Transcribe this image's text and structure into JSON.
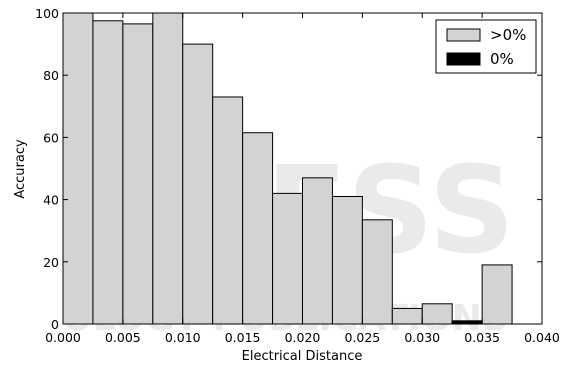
{
  "chart_data": {
    "type": "bar",
    "subtype": "histogram",
    "xlabel": "Electrical Distance",
    "ylabel": "Accuracy",
    "xlim": [
      0.0,
      0.04
    ],
    "ylim": [
      0,
      100
    ],
    "bin_width": 0.0025,
    "xticks": [
      "0.000",
      "0.005",
      "0.010",
      "0.015",
      "0.020",
      "0.025",
      "0.030",
      "0.035",
      "0.040"
    ],
    "yticks": [
      "0",
      "20",
      "40",
      "60",
      "80",
      "100"
    ],
    "grid": false,
    "legend_position": "top-right",
    "series": [
      {
        "name": ">0%",
        "color": "#d3d3d3",
        "bins": [
          {
            "x0": 0.0,
            "value": 100
          },
          {
            "x0": 0.0025,
            "value": 97.5
          },
          {
            "x0": 0.005,
            "value": 96.5
          },
          {
            "x0": 0.0075,
            "value": 100
          },
          {
            "x0": 0.01,
            "value": 90
          },
          {
            "x0": 0.0125,
            "value": 73
          },
          {
            "x0": 0.015,
            "value": 61.5
          },
          {
            "x0": 0.0175,
            "value": 42
          },
          {
            "x0": 0.02,
            "value": 47
          },
          {
            "x0": 0.0225,
            "value": 41
          },
          {
            "x0": 0.025,
            "value": 33.5
          },
          {
            "x0": 0.0275,
            "value": 5
          },
          {
            "x0": 0.03,
            "value": 6.5
          },
          {
            "x0": 0.0325,
            "value": 1
          },
          {
            "x0": 0.035,
            "value": 19
          }
        ]
      },
      {
        "name": "0%",
        "color": "#000000",
        "bins": [
          {
            "x0": 0.0325,
            "value": 1
          }
        ]
      }
    ]
  },
  "watermark": {
    "large": "PRESS",
    "small": "OLOGY PUBLICATIONS"
  }
}
